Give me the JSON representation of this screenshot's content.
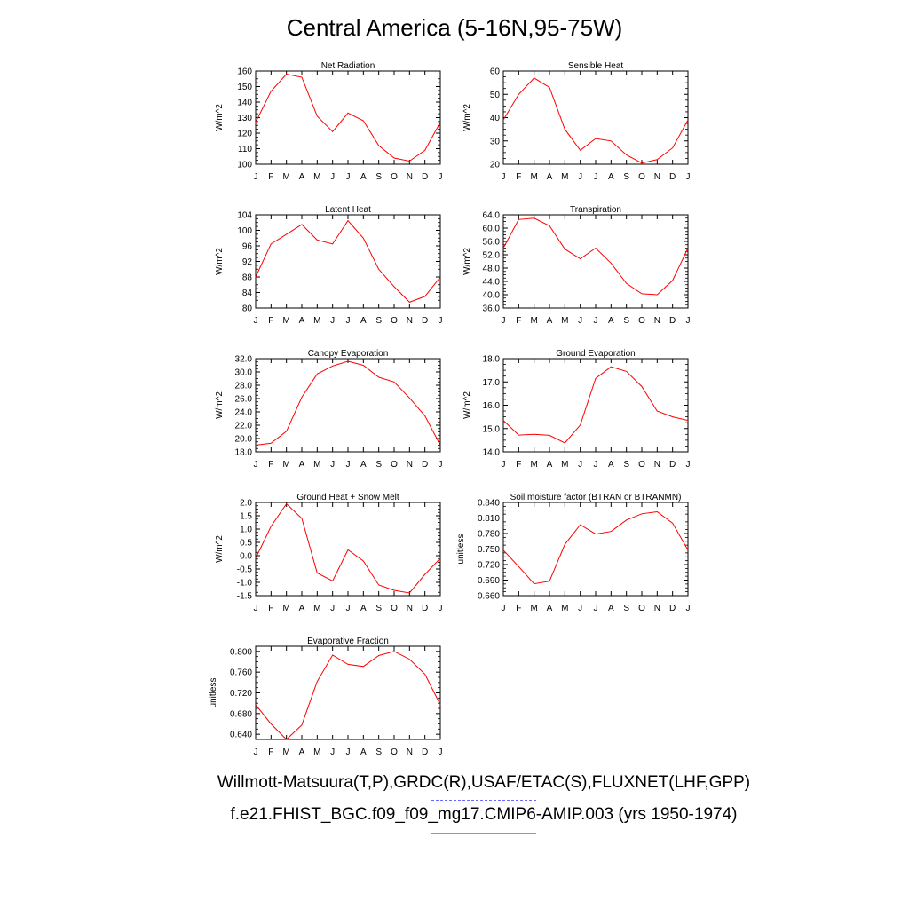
{
  "title": "Central America (5-16N,95-75W)",
  "footer": {
    "obs_line": "Willmott-Matsuura(T,P),GRDC(R),USAF/ETAC(S),FLUXNET(LHF,GPP)",
    "model_line": "f.e21.FHIST_BGC.f09_f09_mg17.CMIP6-AMIP.003 (yrs 1950-1974)"
  },
  "colors": {
    "model_series": "#ff0000",
    "obs_legend": "#6a6aff",
    "model_legend": "#ff6a6a"
  },
  "chart_data": [
    {
      "type": "line",
      "title": "Net Radiation",
      "ylabel": "W/m^2",
      "categories": [
        "J",
        "F",
        "M",
        "A",
        "M",
        "J",
        "J",
        "A",
        "S",
        "O",
        "N",
        "D",
        "J"
      ],
      "ylim": [
        100,
        160
      ],
      "yticks": [
        100,
        110,
        120,
        130,
        140,
        150,
        160
      ],
      "yticklabels": [
        "100",
        "110",
        "120",
        "130",
        "140",
        "150",
        "160"
      ],
      "values": [
        127,
        147,
        158,
        156,
        131,
        121,
        133,
        128,
        112,
        104,
        102,
        109,
        127
      ]
    },
    {
      "type": "line",
      "title": "Sensible Heat",
      "ylabel": "W/m^2",
      "categories": [
        "J",
        "F",
        "M",
        "A",
        "M",
        "J",
        "J",
        "A",
        "S",
        "O",
        "N",
        "D",
        "J"
      ],
      "ylim": [
        20,
        60
      ],
      "yticks": [
        20,
        30,
        40,
        50,
        60
      ],
      "yticklabels": [
        "20",
        "30",
        "40",
        "50",
        "60"
      ],
      "values": [
        39,
        50,
        57,
        53,
        35,
        26,
        31,
        30,
        24,
        20.5,
        22,
        27,
        39
      ]
    },
    {
      "type": "line",
      "title": "Latent Heat",
      "ylabel": "W/m^2",
      "categories": [
        "J",
        "F",
        "M",
        "A",
        "M",
        "J",
        "J",
        "A",
        "S",
        "O",
        "N",
        "D",
        "J"
      ],
      "ylim": [
        80,
        104
      ],
      "yticks": [
        80,
        84,
        88,
        92,
        96,
        100,
        104
      ],
      "yticklabels": [
        "80",
        "84",
        "88",
        "92",
        "96",
        "100",
        "104"
      ],
      "values": [
        88,
        96.5,
        99,
        101.5,
        97.5,
        96.5,
        102.5,
        98,
        90,
        85.5,
        81.5,
        83,
        88
      ]
    },
    {
      "type": "line",
      "title": "Transpiration",
      "ylabel": "W/m^2",
      "categories": [
        "J",
        "F",
        "M",
        "A",
        "M",
        "J",
        "J",
        "A",
        "S",
        "O",
        "N",
        "D",
        "J"
      ],
      "ylim": [
        36,
        64
      ],
      "yticks": [
        36,
        40,
        44,
        48,
        52,
        56,
        60,
        64
      ],
      "yticklabels": [
        "36.0",
        "40.0",
        "44.0",
        "48.0",
        "52.0",
        "56.0",
        "60.0",
        "64.0"
      ],
      "values": [
        54,
        62.6,
        63,
        60.7,
        53.7,
        50.8,
        54,
        49.5,
        43.4,
        40.3,
        40,
        44.3,
        54
      ]
    },
    {
      "type": "line",
      "title": "Canopy Evaporation",
      "ylabel": "W/m^2",
      "categories": [
        "J",
        "F",
        "M",
        "A",
        "M",
        "J",
        "J",
        "A",
        "S",
        "O",
        "N",
        "D",
        "J"
      ],
      "ylim": [
        18,
        32
      ],
      "yticks": [
        18,
        20,
        22,
        24,
        26,
        28,
        30,
        32
      ],
      "yticklabels": [
        "18.0",
        "20.0",
        "22.0",
        "24.0",
        "26.0",
        "28.0",
        "30.0",
        "32.0"
      ],
      "values": [
        19,
        19.3,
        21.1,
        26.2,
        29.7,
        30.9,
        31.6,
        31,
        29.2,
        28.5,
        26.1,
        23.4,
        19
      ]
    },
    {
      "type": "line",
      "title": "Ground Evaporation",
      "ylabel": "W/m^2",
      "categories": [
        "J",
        "F",
        "M",
        "A",
        "M",
        "J",
        "J",
        "A",
        "S",
        "O",
        "N",
        "D",
        "J"
      ],
      "ylim": [
        14,
        18
      ],
      "yticks": [
        14,
        15,
        16,
        17,
        18
      ],
      "yticklabels": [
        "14.0",
        "15.0",
        "16.0",
        "17.0",
        "18.0"
      ],
      "values": [
        15.35,
        14.72,
        14.75,
        14.71,
        14.38,
        15.15,
        17.15,
        17.65,
        17.45,
        16.8,
        15.75,
        15.5,
        15.35
      ]
    },
    {
      "type": "line",
      "title": "Ground Heat + Snow Melt",
      "ylabel": "W/m^2",
      "categories": [
        "J",
        "F",
        "M",
        "A",
        "M",
        "J",
        "J",
        "A",
        "S",
        "O",
        "N",
        "D",
        "J"
      ],
      "ylim": [
        -1.5,
        2.0
      ],
      "yticks": [
        -1.5,
        -1,
        -0.5,
        0,
        0.5,
        1,
        1.5,
        2
      ],
      "yticklabels": [
        "-1.5",
        "-1.0",
        "-0.5",
        "0.0",
        "0.5",
        "1.0",
        "1.5",
        "2.0"
      ],
      "values": [
        -0.1,
        1.1,
        1.95,
        1.4,
        -0.65,
        -0.95,
        0.22,
        -0.2,
        -1.1,
        -1.3,
        -1.4,
        -0.7,
        -0.1
      ]
    },
    {
      "type": "line",
      "title": "Soil moisture factor (BTRAN or BTRANMN)",
      "ylabel": "unitless",
      "categories": [
        "J",
        "F",
        "M",
        "A",
        "M",
        "J",
        "J",
        "A",
        "S",
        "O",
        "N",
        "D",
        "J"
      ],
      "ylim": [
        0.66,
        0.84
      ],
      "yticks": [
        0.66,
        0.69,
        0.72,
        0.75,
        0.78,
        0.81,
        0.84
      ],
      "yticklabels": [
        "0.660",
        "0.690",
        "0.720",
        "0.750",
        "0.780",
        "0.810",
        "0.840"
      ],
      "values": [
        0.748,
        0.716,
        0.683,
        0.688,
        0.759,
        0.797,
        0.779,
        0.784,
        0.806,
        0.818,
        0.822,
        0.8,
        0.748
      ]
    },
    {
      "type": "line",
      "title": "Evaporative Fraction",
      "ylabel": "unitless",
      "categories": [
        "J",
        "F",
        "M",
        "A",
        "M",
        "J",
        "J",
        "A",
        "S",
        "O",
        "N",
        "D",
        "J"
      ],
      "ylim": [
        0.63,
        0.81
      ],
      "yticks": [
        0.64,
        0.68,
        0.72,
        0.76,
        0.8
      ],
      "yticklabels": [
        "0.640",
        "0.680",
        "0.720",
        "0.760",
        "0.800"
      ],
      "values": [
        0.697,
        0.66,
        0.63,
        0.658,
        0.742,
        0.793,
        0.775,
        0.771,
        0.792,
        0.8,
        0.785,
        0.756,
        0.697
      ]
    }
  ]
}
